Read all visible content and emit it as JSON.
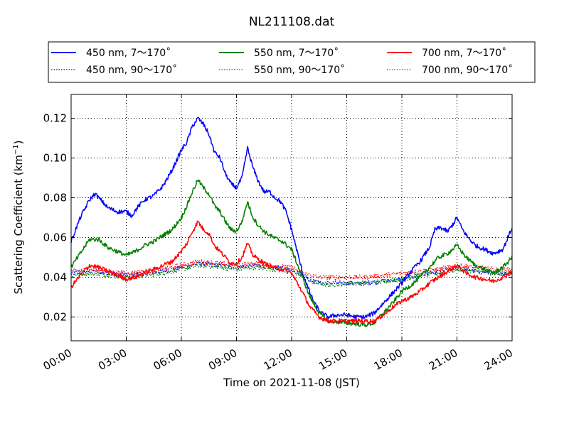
{
  "chart_data": {
    "type": "line",
    "title": "NL211108.dat",
    "xlabel": "Time on 2021-11-08 (JST)",
    "ylabel_main": "Scattering Coefficient (km",
    "ylabel_sup": "−1",
    "ylabel_end": ")",
    "xlim": [
      0,
      24
    ],
    "ylim": [
      0.008,
      0.132
    ],
    "x_ticks": [
      0,
      3,
      6,
      9,
      12,
      15,
      18,
      21,
      24
    ],
    "x_tick_labels": [
      "00:00",
      "03:00",
      "06:00",
      "09:00",
      "12:00",
      "15:00",
      "18:00",
      "21:00",
      "24:00"
    ],
    "y_ticks": [
      0.02,
      0.04,
      0.06,
      0.08,
      0.1,
      0.12
    ],
    "y_tick_labels": [
      "0.02",
      "0.04",
      "0.06",
      "0.08",
      "0.10",
      "0.12"
    ],
    "grid": true,
    "legend_position": "top",
    "series": [
      {
        "name": "450 nm, 7～170˚",
        "color": "#0000ff",
        "style": "solid",
        "x": [
          0,
          0.5,
          1,
          1.3,
          1.6,
          2,
          2.5,
          3,
          3.3,
          3.6,
          4,
          4.5,
          5,
          5.5,
          6,
          6.3,
          6.6,
          6.9,
          7.2,
          7.5,
          7.8,
          8.1,
          8.4,
          8.7,
          9,
          9.3,
          9.6,
          9.9,
          10.2,
          10.5,
          10.8,
          11.1,
          11.4,
          11.7,
          12,
          12.3,
          12.6,
          13,
          13.3,
          13.6,
          14,
          14.5,
          15,
          15.5,
          16,
          16.5,
          17,
          17.5,
          18,
          18.5,
          19,
          19.5,
          19.8,
          20.1,
          20.5,
          20.8,
          21,
          21.3,
          21.6,
          22,
          22.5,
          23,
          23.5,
          24
        ],
        "y": [
          0.058,
          0.07,
          0.079,
          0.082,
          0.079,
          0.075,
          0.073,
          0.073,
          0.071,
          0.075,
          0.079,
          0.081,
          0.086,
          0.094,
          0.104,
          0.108,
          0.116,
          0.12,
          0.117,
          0.112,
          0.103,
          0.1,
          0.092,
          0.087,
          0.085,
          0.09,
          0.105,
          0.095,
          0.088,
          0.083,
          0.083,
          0.08,
          0.078,
          0.073,
          0.064,
          0.053,
          0.042,
          0.032,
          0.026,
          0.022,
          0.02,
          0.021,
          0.021,
          0.02,
          0.02,
          0.022,
          0.027,
          0.032,
          0.037,
          0.043,
          0.048,
          0.055,
          0.064,
          0.065,
          0.063,
          0.067,
          0.07,
          0.064,
          0.06,
          0.056,
          0.054,
          0.052,
          0.054,
          0.065
        ]
      },
      {
        "name": "450 nm, 90～170˚",
        "color": "#0000ff",
        "style": "dotted",
        "x": [
          0,
          1,
          2,
          3,
          4,
          5,
          6,
          7,
          8,
          9,
          10,
          11,
          12,
          12.5,
          13,
          13.5,
          14,
          15,
          16,
          17,
          18,
          19,
          20,
          21,
          22,
          23,
          24
        ],
        "y": [
          0.042,
          0.043,
          0.042,
          0.041,
          0.042,
          0.043,
          0.045,
          0.047,
          0.046,
          0.045,
          0.046,
          0.045,
          0.044,
          0.042,
          0.039,
          0.037,
          0.037,
          0.037,
          0.037,
          0.038,
          0.039,
          0.041,
          0.043,
          0.045,
          0.043,
          0.042,
          0.042
        ]
      },
      {
        "name": "550 nm, 7～170˚",
        "color": "#008000",
        "style": "solid",
        "x": [
          0,
          0.5,
          1,
          1.5,
          2,
          2.5,
          3,
          3.5,
          4,
          4.5,
          5,
          5.5,
          6,
          6.3,
          6.6,
          6.9,
          7.2,
          7.5,
          7.8,
          8.1,
          8.4,
          8.7,
          9,
          9.3,
          9.6,
          9.9,
          10.2,
          10.5,
          11,
          11.5,
          12,
          12.5,
          13,
          13.5,
          14,
          15,
          16,
          16.5,
          17,
          17.5,
          18,
          18.5,
          19,
          19.5,
          20,
          20.5,
          21,
          21.5,
          22,
          22.5,
          23,
          23.5,
          24
        ],
        "y": [
          0.045,
          0.052,
          0.059,
          0.059,
          0.055,
          0.053,
          0.051,
          0.053,
          0.056,
          0.058,
          0.061,
          0.064,
          0.07,
          0.076,
          0.083,
          0.089,
          0.085,
          0.082,
          0.076,
          0.073,
          0.068,
          0.064,
          0.063,
          0.068,
          0.078,
          0.07,
          0.066,
          0.063,
          0.06,
          0.058,
          0.054,
          0.042,
          0.03,
          0.022,
          0.018,
          0.017,
          0.016,
          0.017,
          0.022,
          0.027,
          0.033,
          0.036,
          0.04,
          0.045,
          0.05,
          0.052,
          0.056,
          0.05,
          0.046,
          0.044,
          0.042,
          0.045,
          0.05
        ]
      },
      {
        "name": "550 nm, 90～170˚",
        "color": "#008000",
        "style": "dotted",
        "x": [
          0,
          1,
          2,
          3,
          4,
          5,
          6,
          7,
          8,
          9,
          10,
          11,
          12,
          12.5,
          13,
          13.5,
          14,
          15,
          16,
          17,
          18,
          19,
          20,
          21,
          22,
          23,
          24
        ],
        "y": [
          0.041,
          0.042,
          0.041,
          0.04,
          0.041,
          0.042,
          0.044,
          0.046,
          0.045,
          0.044,
          0.045,
          0.044,
          0.043,
          0.041,
          0.038,
          0.037,
          0.036,
          0.037,
          0.037,
          0.038,
          0.039,
          0.041,
          0.042,
          0.044,
          0.043,
          0.042,
          0.042
        ]
      },
      {
        "name": "700 nm, 7～170˚",
        "color": "#ff0000",
        "style": "solid",
        "x": [
          0,
          0.5,
          1,
          1.5,
          2,
          2.5,
          3,
          3.5,
          4,
          4.5,
          5,
          5.5,
          6,
          6.3,
          6.6,
          6.9,
          7.2,
          7.5,
          7.8,
          8.1,
          8.4,
          8.7,
          9,
          9.3,
          9.6,
          9.9,
          10.2,
          10.5,
          11,
          11.5,
          12,
          12.5,
          13,
          13.5,
          14,
          15,
          16,
          16.5,
          17,
          17.5,
          18,
          18.5,
          19,
          19.5,
          20,
          20.5,
          21,
          21.5,
          22,
          22.5,
          23,
          23.5,
          24
        ],
        "y": [
          0.035,
          0.041,
          0.046,
          0.045,
          0.043,
          0.041,
          0.039,
          0.04,
          0.042,
          0.044,
          0.046,
          0.048,
          0.053,
          0.057,
          0.063,
          0.068,
          0.064,
          0.062,
          0.056,
          0.053,
          0.05,
          0.047,
          0.047,
          0.05,
          0.057,
          0.051,
          0.049,
          0.047,
          0.045,
          0.044,
          0.042,
          0.034,
          0.025,
          0.02,
          0.018,
          0.018,
          0.018,
          0.018,
          0.021,
          0.025,
          0.028,
          0.03,
          0.033,
          0.037,
          0.04,
          0.043,
          0.046,
          0.042,
          0.04,
          0.039,
          0.038,
          0.04,
          0.043
        ]
      },
      {
        "name": "700 nm, 90～170˚",
        "color": "#ff0000",
        "style": "dotted",
        "x": [
          0,
          1,
          2,
          3,
          4,
          5,
          6,
          7,
          8,
          9,
          10,
          11,
          12,
          12.5,
          13,
          13.5,
          14,
          15,
          16,
          17,
          18,
          19,
          20,
          21,
          22,
          23,
          24
        ],
        "y": [
          0.043,
          0.044,
          0.043,
          0.042,
          0.043,
          0.044,
          0.046,
          0.048,
          0.047,
          0.046,
          0.047,
          0.046,
          0.045,
          0.043,
          0.041,
          0.04,
          0.04,
          0.04,
          0.04,
          0.041,
          0.042,
          0.043,
          0.044,
          0.046,
          0.045,
          0.044,
          0.044
        ]
      }
    ]
  }
}
